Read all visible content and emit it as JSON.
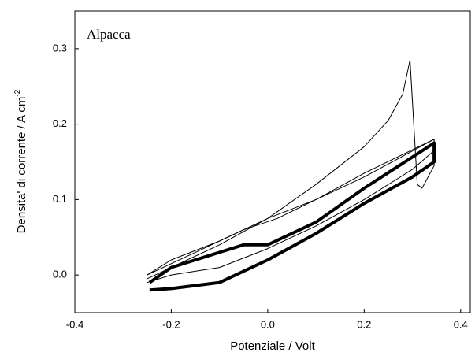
{
  "chart_data": {
    "type": "line",
    "annotation": "Alpacca",
    "x_label": "Potenziale / Volt",
    "y_label": "Densita' di corrente / A cm",
    "y_label_superscript": "-2",
    "xlim": [
      -0.4,
      0.42
    ],
    "ylim": [
      -0.05,
      0.35
    ],
    "xticks": [
      -0.4,
      -0.2,
      {
        "value": 0,
        "label": "0.0"
      },
      0.2,
      0.4
    ],
    "yticks": [
      {
        "value": 0,
        "label": "0.0"
      },
      0.1,
      0.2,
      0.3
    ],
    "series": [
      {
        "color": "#000000",
        "width": 1,
        "x": [
          -0.25,
          -0.2,
          -0.1,
          0,
          0.1,
          0.2,
          0.25,
          0.28,
          0.295,
          0.31,
          0.32,
          0.345,
          0.345,
          0.2,
          0.1,
          0.02,
          -0.05,
          -0.15,
          -0.25
        ],
        "y": [
          -0.005,
          0.01,
          0.04,
          0.075,
          0.12,
          0.17,
          0.205,
          0.24,
          0.285,
          0.12,
          0.115,
          0.145,
          0.18,
          0.13,
          0.1,
          0.075,
          0.06,
          0.03,
          0.0
        ]
      },
      {
        "color": "#000000",
        "width": 1,
        "x": [
          -0.25,
          -0.2,
          -0.1,
          0,
          0.1,
          0.2,
          0.3,
          0.345,
          0.345,
          0.2,
          0.1,
          0,
          -0.1,
          -0.2,
          -0.25
        ],
        "y": [
          -0.01,
          0.0,
          0.01,
          0.035,
          0.065,
          0.1,
          0.14,
          0.165,
          0.18,
          0.135,
          0.1,
          0.075,
          0.045,
          0.02,
          0.0
        ]
      },
      {
        "color": "#000000",
        "width": 4,
        "x": [
          -0.245,
          -0.2,
          -0.1,
          0,
          0.1,
          0.2,
          0.3,
          0.345,
          0.345,
          0.2,
          0.1,
          0,
          -0.05,
          -0.1,
          -0.2,
          -0.245
        ],
        "y": [
          -0.02,
          -0.018,
          -0.01,
          0.02,
          0.055,
          0.095,
          0.13,
          0.15,
          0.175,
          0.115,
          0.07,
          0.04,
          0.04,
          0.03,
          0.01,
          -0.01
        ]
      }
    ]
  }
}
